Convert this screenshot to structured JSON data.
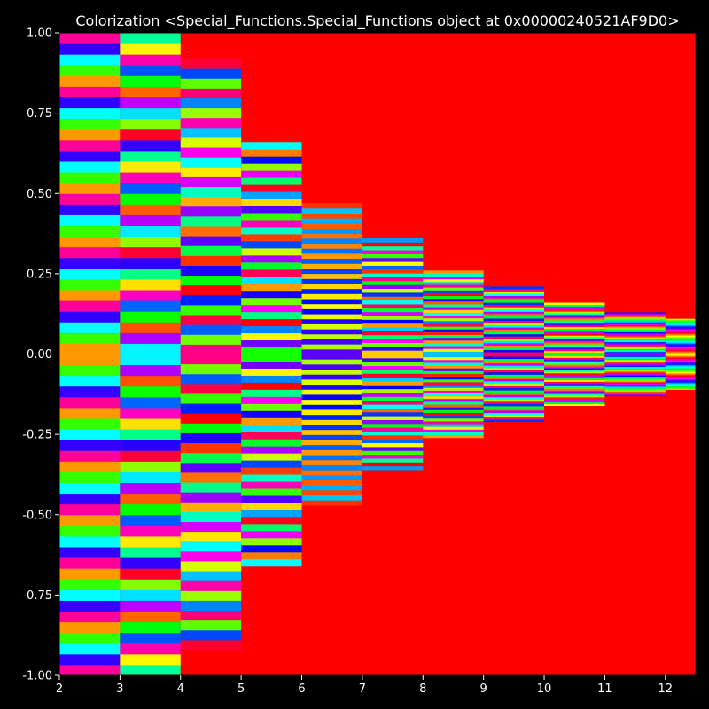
{
  "chart_data": {
    "type": "heatmap",
    "title": "Colorization <Special_Functions.Special_Functions object at 0x00000240521AF9D0>",
    "xlabel": "",
    "ylabel": "",
    "xlim": [
      2,
      12.5
    ],
    "ylim": [
      -1.0,
      1.0
    ],
    "x_ticks": [
      "2",
      "3",
      "4",
      "5",
      "6",
      "7",
      "8",
      "9",
      "10",
      "11",
      "12"
    ],
    "y_ticks": [
      "1.00",
      "0.75",
      "0.50",
      "0.25",
      "0.00",
      "-0.25",
      "-0.50",
      "-0.75",
      "-1.00"
    ],
    "grid": false,
    "colormap": "hsv",
    "background_color": "#000000",
    "saturated_color": "#ff0000",
    "segments": [
      {
        "x_start": 2,
        "x_end": 3,
        "band_halfwidth": 1.0
      },
      {
        "x_start": 3,
        "x_end": 4,
        "band_halfwidth": 1.0
      },
      {
        "x_start": 4,
        "x_end": 5,
        "band_halfwidth": 0.92
      },
      {
        "x_start": 5,
        "x_end": 6,
        "band_halfwidth": 0.66
      },
      {
        "x_start": 6,
        "x_end": 7,
        "band_halfwidth": 0.47
      },
      {
        "x_start": 7,
        "x_end": 8,
        "band_halfwidth": 0.36
      },
      {
        "x_start": 8,
        "x_end": 9,
        "band_halfwidth": 0.26
      },
      {
        "x_start": 9,
        "x_end": 10,
        "band_halfwidth": 0.21
      },
      {
        "x_start": 10,
        "x_end": 11,
        "band_halfwidth": 0.16
      },
      {
        "x_start": 11,
        "x_end": 12,
        "band_halfwidth": 0.13
      },
      {
        "x_start": 12,
        "x_end": 12.5,
        "band_halfwidth": 0.11
      }
    ]
  }
}
